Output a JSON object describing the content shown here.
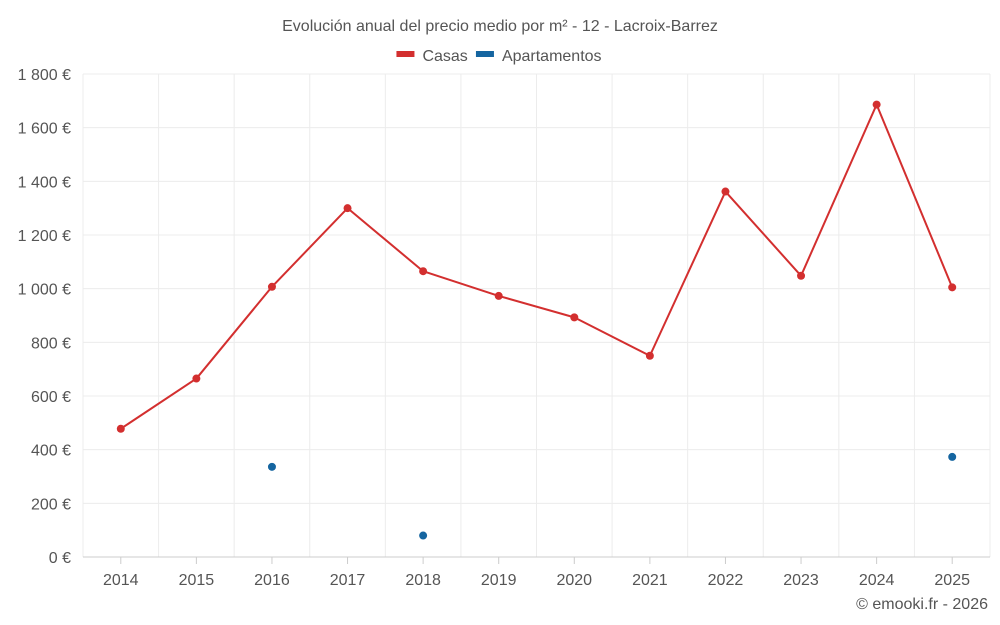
{
  "chart_data": {
    "type": "line",
    "title": "Evolución anual del precio medio por m² - 12 - Lacroix-Barrez",
    "categories": [
      "2014",
      "2015",
      "2016",
      "2017",
      "2018",
      "2019",
      "2020",
      "2021",
      "2022",
      "2023",
      "2024",
      "2025"
    ],
    "series": [
      {
        "name": "Casas",
        "color": "#d32f2f",
        "values": [
          478,
          665,
          1007,
          1300,
          1065,
          973,
          893,
          750,
          1362,
          1048,
          1686,
          1005
        ]
      },
      {
        "name": "Apartamentos",
        "color": "#1565a0",
        "values": [
          null,
          null,
          336,
          null,
          80,
          null,
          null,
          null,
          null,
          null,
          null,
          373
        ]
      }
    ],
    "ylim": [
      0,
      1800
    ],
    "yticks": [
      0,
      200,
      400,
      600,
      800,
      1000,
      1200,
      1400,
      1600,
      1800
    ],
    "ytick_labels": [
      "0 €",
      "200 €",
      "400 €",
      "600 €",
      "800 €",
      "1 000 €",
      "1 200 €",
      "1 400 €",
      "1 600 €",
      "1 800 €"
    ],
    "xlabel": "",
    "ylabel": "",
    "legend_position": "top-center",
    "grid": true
  },
  "credit": "© emooki.fr - 2026"
}
